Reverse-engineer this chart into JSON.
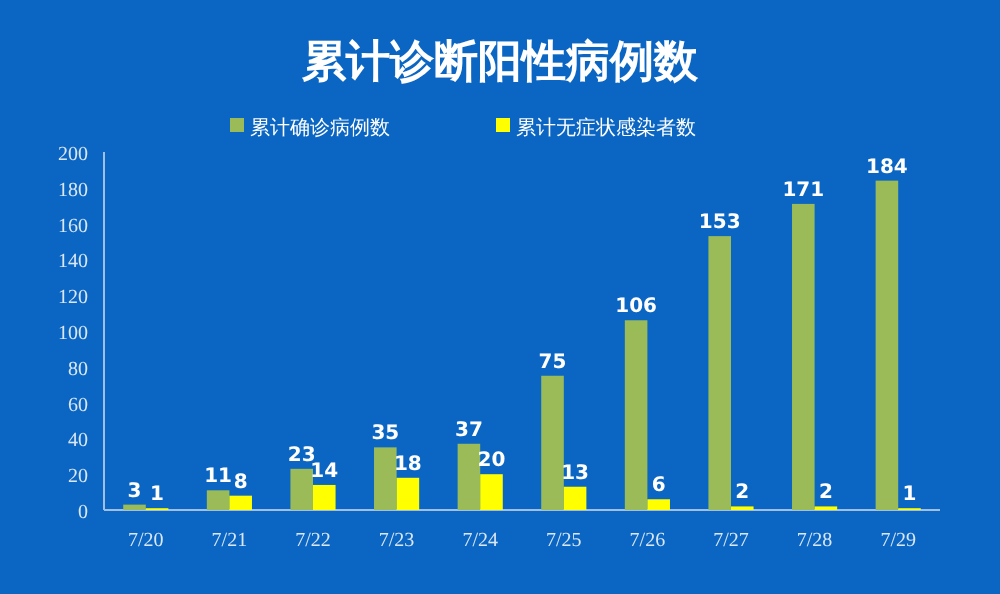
{
  "chart_data": {
    "type": "bar",
    "title": "累计诊断阳性病例数",
    "categories": [
      "7/20",
      "7/21",
      "7/22",
      "7/23",
      "7/24",
      "7/25",
      "7/26",
      "7/27",
      "7/28",
      "7/29"
    ],
    "series": [
      {
        "name": "累计确诊病例数",
        "color": "#9bbb59",
        "values": [
          3,
          11,
          23,
          35,
          37,
          75,
          106,
          153,
          171,
          184
        ]
      },
      {
        "name": "累计无症状感染者数",
        "color": "#ffff00",
        "values": [
          1,
          8,
          14,
          18,
          20,
          13,
          6,
          2,
          2,
          1
        ]
      }
    ],
    "ylim": [
      0,
      200
    ],
    "yticks": [
      0,
      20,
      40,
      60,
      80,
      100,
      120,
      140,
      160,
      180,
      200
    ],
    "grid": false,
    "legend": "top",
    "data_labels": true
  }
}
